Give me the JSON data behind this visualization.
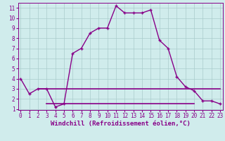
{
  "title": "",
  "xlabel": "Windchill (Refroidissement éolien,°C)",
  "x_main": [
    0,
    1,
    2,
    3,
    4,
    5,
    6,
    7,
    8,
    9,
    10,
    11,
    12,
    13,
    14,
    15,
    16,
    17,
    18,
    19,
    20,
    21,
    22,
    23
  ],
  "y_main": [
    4.0,
    2.5,
    3.0,
    3.0,
    1.2,
    1.5,
    6.5,
    7.0,
    8.5,
    9.0,
    9.0,
    11.2,
    10.5,
    10.5,
    10.5,
    10.8,
    7.8,
    7.0,
    4.2,
    3.2,
    2.8,
    1.8,
    1.8,
    1.5
  ],
  "x_hline1_start": 2,
  "x_hline1_end": 23,
  "y_hline1": 3.0,
  "x_hline2_start": 3,
  "x_hline2_end": 20,
  "y_hline2": 1.55,
  "line_color": "#880088",
  "hline_color": "#880088",
  "bg_color": "#d0ecec",
  "grid_color": "#aacccc",
  "marker": "+",
  "ylim": [
    0.9,
    11.5
  ],
  "xlim": [
    -0.3,
    23.3
  ],
  "yticks": [
    1,
    2,
    3,
    4,
    5,
    6,
    7,
    8,
    9,
    10,
    11
  ],
  "xticks": [
    0,
    1,
    2,
    3,
    4,
    5,
    6,
    7,
    8,
    9,
    10,
    11,
    12,
    13,
    14,
    15,
    16,
    17,
    18,
    19,
    20,
    21,
    22,
    23
  ],
  "tick_fontsize": 5.5,
  "xlabel_fontsize": 6.5,
  "title_fontsize": 6
}
